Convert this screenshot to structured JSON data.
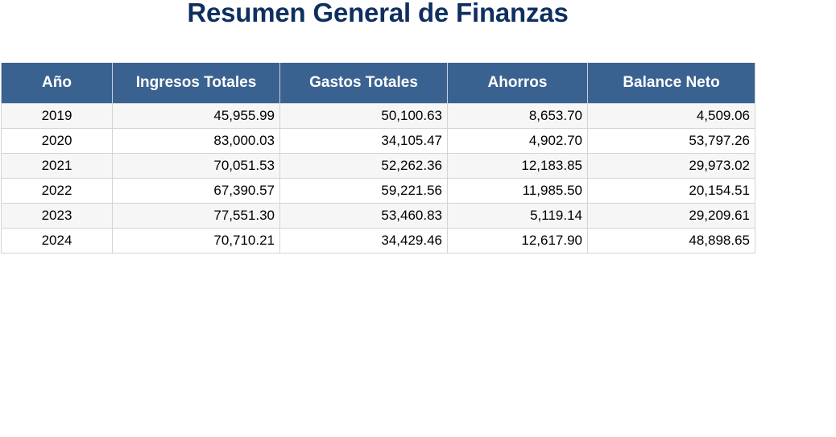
{
  "title": "Resumen General de Finanzas",
  "table": {
    "headers": [
      "Año",
      "Ingresos Totales",
      "Gastos Totales",
      "Ahorros",
      "Balance Neto"
    ],
    "rows": [
      [
        "2019",
        "45,955.99",
        "50,100.63",
        "8,653.70",
        "4,509.06"
      ],
      [
        "2020",
        "83,000.03",
        "34,105.47",
        "4,902.70",
        "53,797.26"
      ],
      [
        "2021",
        "70,051.53",
        "52,262.36",
        "12,183.85",
        "29,973.02"
      ],
      [
        "2022",
        "67,390.57",
        "59,221.56",
        "11,985.50",
        "20,154.51"
      ],
      [
        "2023",
        "77,551.30",
        "53,460.83",
        "5,119.14",
        "29,209.61"
      ],
      [
        "2024",
        "70,710.21",
        "34,429.46",
        "12,617.90",
        "48,898.65"
      ]
    ]
  },
  "colors": {
    "header_bg": "#3a6291",
    "title": "#0f2f5f",
    "stripe": "#f6f6f6"
  }
}
